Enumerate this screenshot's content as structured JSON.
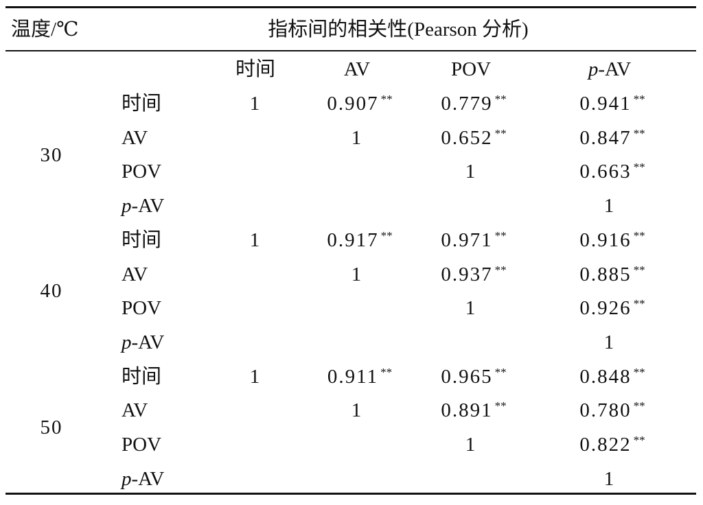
{
  "header": {
    "temperature_label": "温度/℃",
    "title": "指标间的相关性(Pearson 分析)"
  },
  "columns": [
    "时间",
    "AV",
    "POV",
    "p-AV"
  ],
  "significance_mark": "**",
  "groups": [
    {
      "temperature": "30",
      "rows": [
        {
          "label": "时间",
          "cells": [
            "1",
            "0.907",
            "0.779",
            "0.941"
          ]
        },
        {
          "label": "AV",
          "cells": [
            "",
            "1",
            "0.652",
            "0.847"
          ]
        },
        {
          "label": "POV",
          "cells": [
            "",
            "",
            "1",
            "0.663"
          ]
        },
        {
          "label": "p-AV",
          "cells": [
            "",
            "",
            "",
            "1"
          ]
        }
      ]
    },
    {
      "temperature": "40",
      "rows": [
        {
          "label": "时间",
          "cells": [
            "1",
            "0.917",
            "0.971",
            "0.916"
          ]
        },
        {
          "label": "AV",
          "cells": [
            "",
            "1",
            "0.937",
            "0.885"
          ]
        },
        {
          "label": "POV",
          "cells": [
            "",
            "",
            "1",
            "0.926"
          ]
        },
        {
          "label": "p-AV",
          "cells": [
            "",
            "",
            "",
            "1"
          ]
        }
      ]
    },
    {
      "temperature": "50",
      "rows": [
        {
          "label": "时间",
          "cells": [
            "1",
            "0.911",
            "0.965",
            "0.848"
          ]
        },
        {
          "label": "AV",
          "cells": [
            "",
            "1",
            "0.891",
            "0.780"
          ]
        },
        {
          "label": "POV",
          "cells": [
            "",
            "",
            "1",
            "0.822"
          ]
        },
        {
          "label": "p-AV",
          "cells": [
            "",
            "",
            "",
            "1"
          ]
        }
      ]
    }
  ]
}
